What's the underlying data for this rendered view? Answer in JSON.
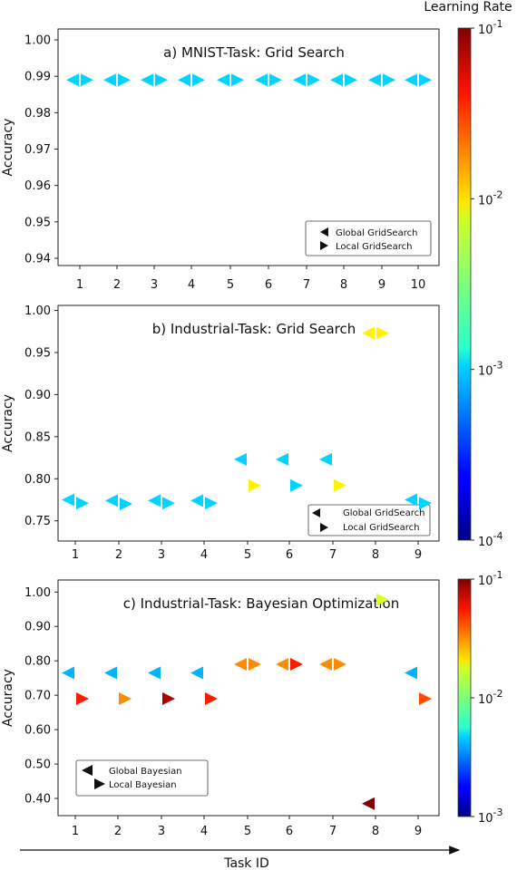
{
  "chart_data": [
    {
      "type": "scatter",
      "title": "a) MNIST-Task: Grid Search",
      "ylabel": "Accuracy",
      "xlabel": "",
      "ylim": [
        0.938,
        1.003
      ],
      "y_ticks": [
        "1.00",
        "0.99",
        "0.98",
        "0.97",
        "0.96",
        "0.95",
        "0.94"
      ],
      "y_tick_values": [
        1.0,
        0.99,
        0.98,
        0.97,
        0.96,
        0.95,
        0.94
      ],
      "x_ticks": [
        "1",
        "2",
        "3",
        "4",
        "5",
        "6",
        "7",
        "8",
        "9",
        "10"
      ],
      "legend": {
        "position": "lower-right",
        "entries": [
          "Global GridSearch",
          "Local GridSearch"
        ]
      },
      "series": [
        {
          "name": "Global GridSearch",
          "marker": "left-triangle",
          "x": [
            1,
            2,
            3,
            4,
            5,
            6,
            7,
            8,
            9,
            10
          ],
          "values": [
            0.989,
            0.989,
            0.989,
            0.989,
            0.989,
            0.989,
            0.989,
            0.989,
            0.989,
            0.989
          ],
          "learning_rate": [
            0.001,
            0.001,
            0.001,
            0.001,
            0.001,
            0.001,
            0.001,
            0.001,
            0.001,
            0.001
          ]
        },
        {
          "name": "Local GridSearch",
          "marker": "right-triangle",
          "x": [
            1,
            2,
            3,
            4,
            5,
            6,
            7,
            8,
            9,
            10
          ],
          "values": [
            0.989,
            0.989,
            0.989,
            0.989,
            0.989,
            0.989,
            0.989,
            0.989,
            0.989,
            0.989
          ],
          "learning_rate": [
            0.001,
            0.001,
            0.001,
            0.001,
            0.001,
            0.001,
            0.001,
            0.001,
            0.001,
            0.001
          ]
        }
      ]
    },
    {
      "type": "scatter",
      "title": "b) Industrial-Task: Grid Search",
      "ylabel": "Accuracy",
      "xlabel": "",
      "ylim": [
        0.726,
        1.006
      ],
      "y_ticks": [
        "1.00",
        "0.95",
        "0.90",
        "0.85",
        "0.80",
        "0.75"
      ],
      "y_tick_values": [
        1.0,
        0.95,
        0.9,
        0.85,
        0.8,
        0.75
      ],
      "x_ticks": [
        "1",
        "2",
        "3",
        "4",
        "5",
        "6",
        "7",
        "8",
        "9"
      ],
      "legend": {
        "position": "lower-right",
        "entries": [
          "Global GridSearch",
          "Local GridSearch"
        ]
      },
      "series": [
        {
          "name": "Global GridSearch",
          "marker": "left-triangle",
          "x": [
            1,
            2,
            3,
            4,
            5,
            6,
            7,
            8,
            9
          ],
          "values": [
            0.775,
            0.774,
            0.774,
            0.774,
            0.823,
            0.823,
            0.823,
            0.973,
            0.775
          ],
          "learning_rate": [
            0.001,
            0.001,
            0.001,
            0.001,
            0.001,
            0.001,
            0.001,
            0.008,
            0.001
          ]
        },
        {
          "name": "Local GridSearch",
          "marker": "right-triangle",
          "x": [
            1,
            2,
            3,
            4,
            5,
            6,
            7,
            8,
            9
          ],
          "values": [
            0.771,
            0.77,
            0.771,
            0.771,
            0.792,
            0.792,
            0.792,
            0.973,
            0.771
          ],
          "learning_rate": [
            0.001,
            0.001,
            0.001,
            0.001,
            0.008,
            0.001,
            0.008,
            0.008,
            0.001
          ]
        }
      ]
    },
    {
      "type": "scatter",
      "title": "c) Industrial-Task: Bayesian Optimization",
      "ylabel": "Accuracy",
      "xlabel": "Task ID",
      "ylim": [
        0.35,
        1.035
      ],
      "y_ticks": [
        "1.00",
        "0.90",
        "0.80",
        "0.70",
        "0.60",
        "0.50",
        "0.40"
      ],
      "y_tick_values": [
        1.0,
        0.9,
        0.8,
        0.7,
        0.6,
        0.5,
        0.4
      ],
      "x_ticks": [
        "1",
        "2",
        "3",
        "4",
        "5",
        "6",
        "7",
        "8",
        "9"
      ],
      "legend": {
        "position": "lower-left",
        "entries": [
          "Global Bayesian",
          "Local Bayesian"
        ]
      },
      "series": [
        {
          "name": "Global Bayesian",
          "marker": "left-triangle",
          "x": [
            1,
            2,
            3,
            4,
            5,
            6,
            7,
            8,
            9
          ],
          "values": [
            0.765,
            0.765,
            0.765,
            0.765,
            0.79,
            0.79,
            0.79,
            0.385,
            0.765
          ],
          "learning_rate": [
            0.004,
            0.004,
            0.004,
            0.004,
            0.03,
            0.03,
            0.03,
            0.1,
            0.004
          ]
        },
        {
          "name": "Local Bayesian",
          "marker": "right-triangle",
          "x": [
            1,
            2,
            3,
            4,
            5,
            6,
            7,
            8,
            9
          ],
          "values": [
            0.69,
            0.69,
            0.69,
            0.69,
            0.79,
            0.79,
            0.79,
            0.978,
            0.69
          ],
          "learning_rate": [
            0.05,
            0.03,
            0.08,
            0.05,
            0.03,
            0.05,
            0.03,
            0.015,
            0.04
          ]
        }
      ]
    }
  ],
  "colorbars": [
    {
      "title": "Learning Rate",
      "scale": "log",
      "range": [
        0.0001,
        0.1
      ],
      "ticks": [
        {
          "base": "10",
          "exp": "-1"
        },
        {
          "base": "10",
          "exp": "-2"
        },
        {
          "base": "10",
          "exp": "-3"
        },
        {
          "base": "10",
          "exp": "-4"
        }
      ]
    },
    {
      "title": "",
      "scale": "log",
      "range": [
        0.001,
        0.1
      ],
      "ticks": [
        {
          "base": "10",
          "exp": "-1"
        },
        {
          "base": "10",
          "exp": "-2"
        },
        {
          "base": "10",
          "exp": "-3"
        }
      ]
    }
  ],
  "colormap": "jet"
}
